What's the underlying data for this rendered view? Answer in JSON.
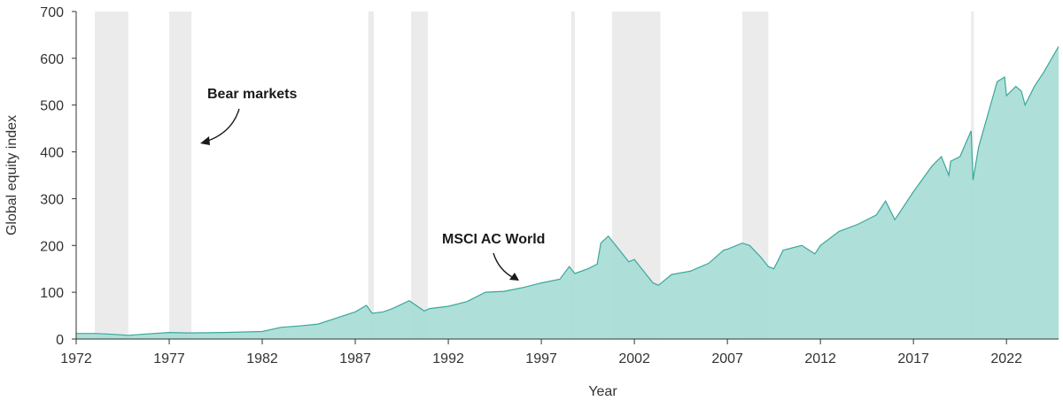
{
  "chart_data": {
    "type": "area",
    "title": "",
    "xlabel": "Year",
    "ylabel": "Global equity index",
    "xlim": [
      1972,
      2024.8
    ],
    "ylim": [
      0,
      700
    ],
    "x_ticks": [
      1972,
      1977,
      1982,
      1987,
      1992,
      1997,
      2002,
      2007,
      2012,
      2017,
      2022
    ],
    "y_ticks": [
      0,
      100,
      200,
      300,
      400,
      500,
      600,
      700
    ],
    "grid": false,
    "legend": "none",
    "colors": {
      "area_fill": "#a8dcd6",
      "area_line": "#3aa89a",
      "bear_market_band": "#e8e8e8",
      "axis": "#333333",
      "text": "#1a1a1a"
    },
    "bear_markets": [
      [
        1973.0,
        1974.8
      ],
      [
        1977.0,
        1978.2
      ],
      [
        1987.7,
        1988.0
      ],
      [
        1990.0,
        1990.9
      ],
      [
        1998.6,
        1998.8
      ],
      [
        2000.8,
        2003.4
      ],
      [
        2007.8,
        2009.2
      ],
      [
        2020.1,
        2020.25
      ]
    ],
    "series": [
      {
        "name": "MSCI AC World",
        "x": [
          1972,
          1973,
          1974,
          1974.8,
          1975.5,
          1977,
          1978,
          1980,
          1982,
          1983,
          1984,
          1985,
          1986,
          1987,
          1987.6,
          1987.9,
          1988.5,
          1989,
          1989.9,
          1990.7,
          1991,
          1992,
          1993,
          1994,
          1995,
          1996,
          1997,
          1998,
          1998.5,
          1998.8,
          1999.5,
          2000,
          2000.2,
          2000.6,
          2001,
          2001.7,
          2002,
          2002.6,
          2003,
          2003.3,
          2004,
          2005,
          2006,
          2006.8,
          2007,
          2007.8,
          2008.2,
          2008.8,
          2009.2,
          2009.5,
          2010,
          2011,
          2011.7,
          2012,
          2013,
          2014,
          2015,
          2015.5,
          2016,
          2017,
          2018,
          2018.5,
          2018.9,
          2019,
          2019.5,
          2020.1,
          2020.2,
          2020.5,
          2021,
          2021.5,
          2021.9,
          2022,
          2022.5,
          2022.8,
          2023,
          2023.5,
          2024,
          2024.8
        ],
        "values": [
          12,
          12,
          10,
          8,
          10,
          14,
          13,
          14,
          16,
          25,
          28,
          32,
          45,
          58,
          72,
          55,
          58,
          65,
          82,
          60,
          65,
          70,
          80,
          100,
          102,
          110,
          120,
          128,
          155,
          140,
          150,
          160,
          205,
          220,
          200,
          165,
          170,
          140,
          120,
          115,
          138,
          145,
          162,
          190,
          192,
          205,
          200,
          175,
          155,
          150,
          190,
          200,
          182,
          200,
          230,
          245,
          265,
          295,
          255,
          315,
          370,
          390,
          350,
          380,
          390,
          445,
          340,
          410,
          480,
          550,
          560,
          520,
          540,
          530,
          500,
          540,
          570,
          625
        ]
      }
    ],
    "annotations": [
      {
        "text": "Bear markets",
        "target_x": 1977.5,
        "target_y": 420
      },
      {
        "text": "MSCI AC World",
        "target_x": 1995.2,
        "target_y": 120
      }
    ]
  }
}
